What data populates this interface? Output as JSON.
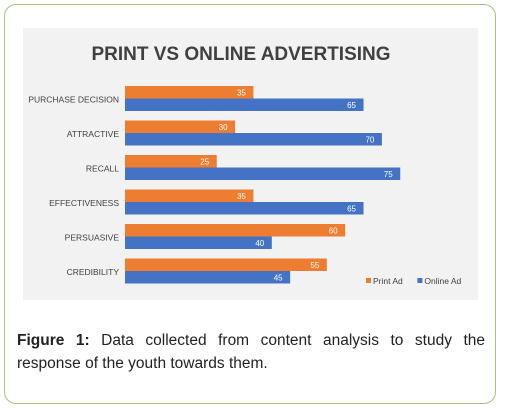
{
  "caption": {
    "label": "Figure 1:",
    "text": " Data collected from content analysis to study the response of the youth towards them."
  },
  "chart_data": {
    "type": "bar",
    "orientation": "horizontal",
    "title": "PRINT VS ONLINE ADVERTISING",
    "categories": [
      "PURCHASE DECISION",
      "ATTRACTIVE",
      "RECALL",
      "EFFECTIVENESS",
      "PERSUASIVE",
      "CREDIBILITY"
    ],
    "series": [
      {
        "name": "Print Ad",
        "color": "#ed7d31",
        "values": [
          35,
          30,
          25,
          35,
          60,
          55
        ]
      },
      {
        "name": "Online Ad",
        "color": "#4472c4",
        "values": [
          65,
          70,
          75,
          65,
          40,
          45
        ]
      }
    ],
    "xlim": [
      0,
      100
    ],
    "grid": false,
    "data_labels": true,
    "legend_position": "bottom-right"
  }
}
